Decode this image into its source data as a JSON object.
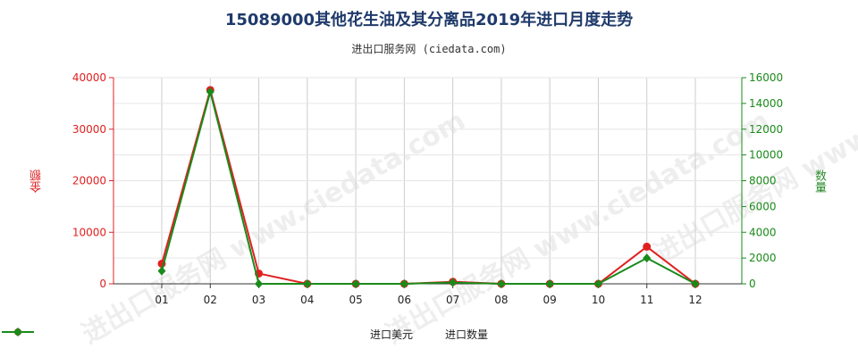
{
  "title": "15089000其他花生油及其分离品2019年进口月度走势",
  "subtitle": "进出口服务网 (ciedata.com)",
  "watermark": "进出口服务网 www.ciedata.com",
  "colors": {
    "left_series": "#e02020",
    "right_series": "#1a8a1a",
    "grid": "#cccccc"
  },
  "chart_data": {
    "type": "line",
    "categories": [
      "01",
      "02",
      "03",
      "04",
      "05",
      "06",
      "07",
      "08",
      "09",
      "10",
      "11",
      "12"
    ],
    "series": [
      {
        "name": "进口美元",
        "axis": "left",
        "values": [
          3900,
          37600,
          2000,
          0,
          0,
          0,
          400,
          0,
          0,
          0,
          7200,
          0
        ]
      },
      {
        "name": "进口数量",
        "axis": "right",
        "values": [
          1000,
          14900,
          0,
          0,
          0,
          0,
          100,
          0,
          0,
          0,
          2000,
          0
        ]
      }
    ],
    "ylabel_left": "金额",
    "ylabel_right": "数量",
    "ylim_left": [
      0,
      40000
    ],
    "ylim_right": [
      0,
      16000
    ],
    "yticks_left": [
      "0",
      "10000",
      "20000",
      "30000",
      "40000"
    ],
    "yticks_right": [
      "0",
      "2000",
      "4000",
      "6000",
      "8000",
      "10000",
      "12000",
      "14000",
      "16000"
    ],
    "legend_position": "bottom"
  }
}
